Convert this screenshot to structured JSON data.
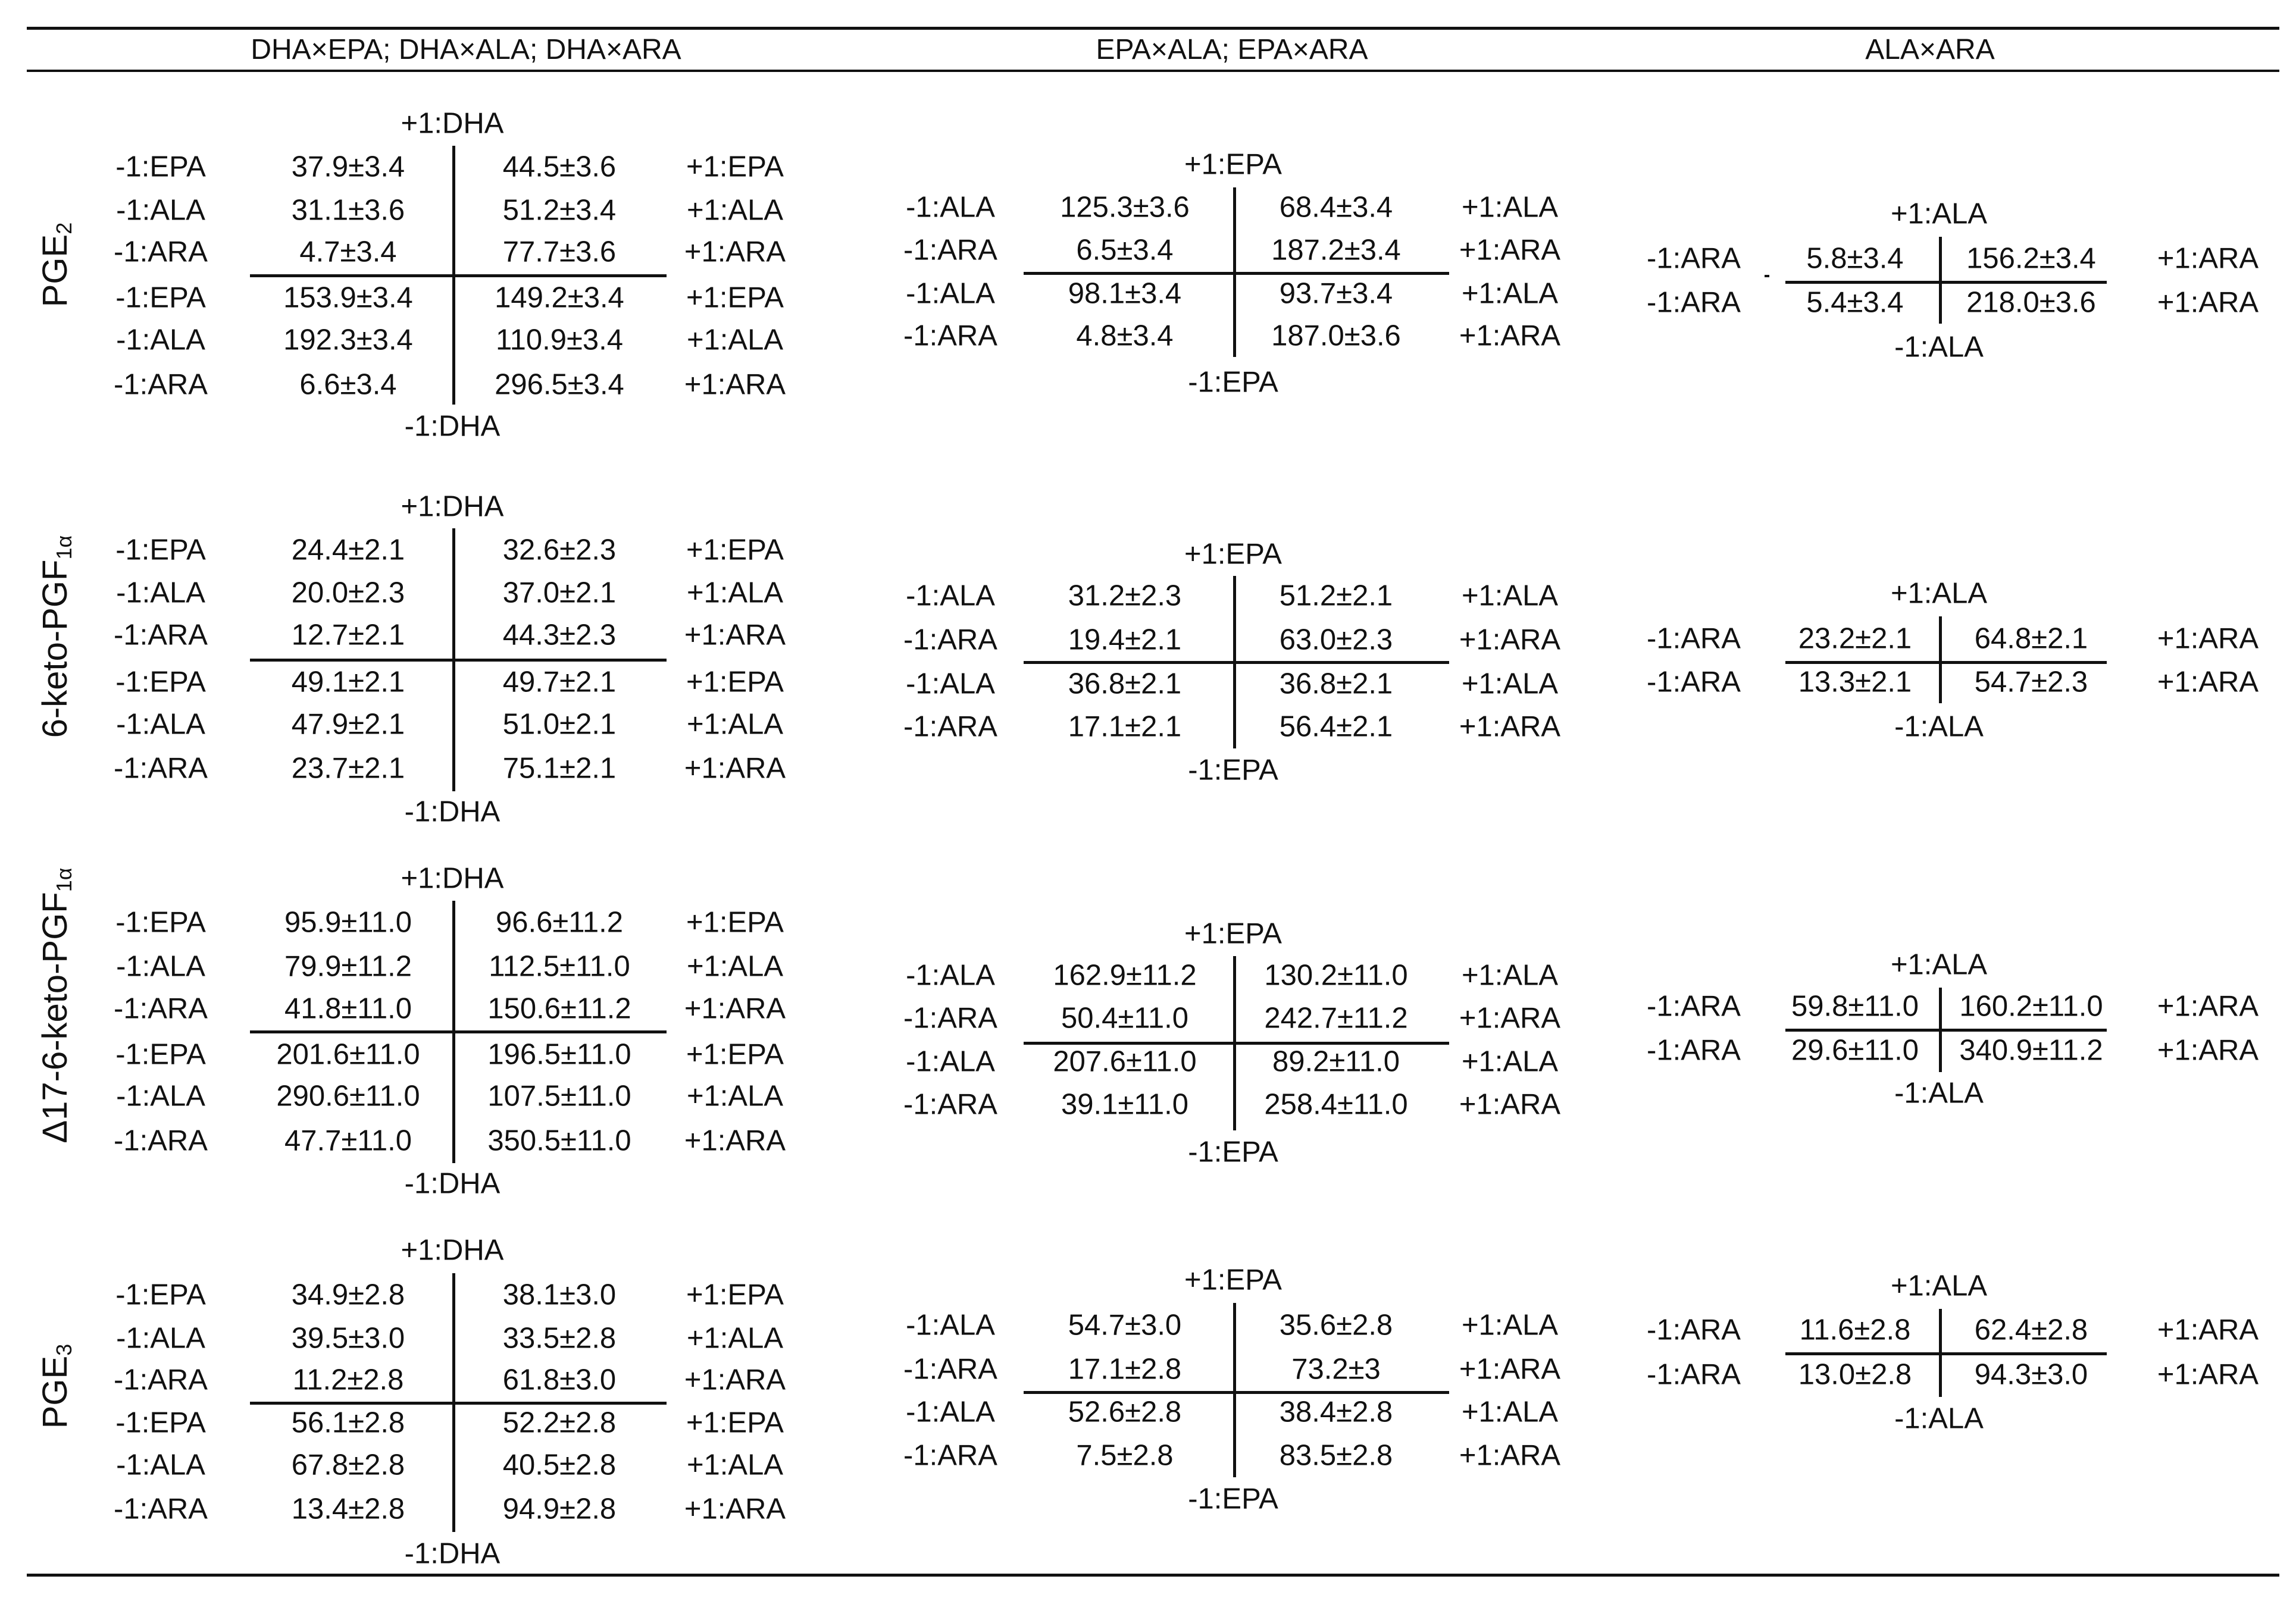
{
  "columns": [
    "DHA×EPA; DHA×ALA; DHA×ARA",
    "EPA×ALA; EPA×ARA",
    "ALA×ARA"
  ],
  "rows": [
    {
      "label": "PGE",
      "label_sub": "2",
      "g1": {
        "top": "+1:DHA",
        "bottom": "-1:DHA",
        "left": [
          "-1:EPA",
          "-1:ALA",
          "-1:ARA",
          "-1:EPA",
          "-1:ALA",
          "-1:ARA"
        ],
        "right": [
          "+1:EPA",
          "+1:ALA",
          "+1:ARA",
          "+1:EPA",
          "+1:ALA",
          "+1:ARA"
        ],
        "c1": [
          "37.9±3.4",
          "31.1±3.6",
          "4.7±3.4",
          "153.9±3.4",
          "192.3±3.4",
          "6.6±3.4"
        ],
        "c2": [
          "44.5±3.6",
          "51.2±3.4",
          "77.7±3.6",
          "149.2±3.4",
          "110.9±3.4",
          "296.5±3.4"
        ]
      },
      "g2": {
        "top": "+1:EPA",
        "bottom": "-1:EPA",
        "left": [
          "-1:ALA",
          "-1:ARA",
          "-1:ALA",
          "-1:ARA"
        ],
        "right": [
          "+1:ALA",
          "+1:ARA",
          "+1:ALA",
          "+1:ARA"
        ],
        "c1": [
          "125.3±3.6",
          "6.5±3.4",
          "98.1±3.4",
          "4.8±3.4"
        ],
        "c2": [
          "68.4±3.4",
          "187.2±3.4",
          "93.7±3.4",
          "187.0±3.6"
        ]
      },
      "g3": {
        "top": "+1:ALA",
        "bottom": "-1:ALA",
        "left": [
          "-1:ARA",
          "-1:ARA"
        ],
        "right": [
          "+1:ARA",
          "+1:ARA"
        ],
        "c1": [
          "5.8±3.4",
          "5.4±3.4"
        ],
        "c2": [
          "156.2±3.4",
          "218.0±3.6"
        ]
      }
    },
    {
      "label": "6-keto-PGF",
      "label_sub": "1α",
      "g1": {
        "top": "+1:DHA",
        "bottom": "-1:DHA",
        "left": [
          "-1:EPA",
          "-1:ALA",
          "-1:ARA",
          "-1:EPA",
          "-1:ALA",
          "-1:ARA"
        ],
        "right": [
          "+1:EPA",
          "+1:ALA",
          "+1:ARA",
          "+1:EPA",
          "+1:ALA",
          "+1:ARA"
        ],
        "c1": [
          "24.4±2.1",
          "20.0±2.3",
          "12.7±2.1",
          "49.1±2.1",
          "47.9±2.1",
          "23.7±2.1"
        ],
        "c2": [
          "32.6±2.3",
          "37.0±2.1",
          "44.3±2.3",
          "49.7±2.1",
          "51.0±2.1",
          "75.1±2.1"
        ]
      },
      "g2": {
        "top": "+1:EPA",
        "bottom": "-1:EPA",
        "left": [
          "-1:ALA",
          "-1:ARA",
          "-1:ALA",
          "-1:ARA"
        ],
        "right": [
          "+1:ALA",
          "+1:ARA",
          "+1:ALA",
          "+1:ARA"
        ],
        "c1": [
          "31.2±2.3",
          "19.4±2.1",
          "36.8±2.1",
          "17.1±2.1"
        ],
        "c2": [
          "51.2±2.1",
          "63.0±2.3",
          "36.8±2.1",
          "56.4±2.1"
        ]
      },
      "g3": {
        "top": "+1:ALA",
        "bottom": "-1:ALA",
        "left": [
          "-1:ARA",
          "-1:ARA"
        ],
        "right": [
          "+1:ARA",
          "+1:ARA"
        ],
        "c1": [
          "23.2±2.1",
          "13.3±2.1"
        ],
        "c2": [
          "64.8±2.1",
          "54.7±2.3"
        ]
      }
    },
    {
      "label": "Δ17-6-keto-PGF",
      "label_sub": "1α",
      "g1": {
        "top": "+1:DHA",
        "bottom": "-1:DHA",
        "left": [
          "-1:EPA",
          "-1:ALA",
          "-1:ARA",
          "-1:EPA",
          "-1:ALA",
          "-1:ARA"
        ],
        "right": [
          "+1:EPA",
          "+1:ALA",
          "+1:ARA",
          "+1:EPA",
          "+1:ALA",
          "+1:ARA"
        ],
        "c1": [
          "95.9±11.0",
          "79.9±11.2",
          "41.8±11.0",
          "201.6±11.0",
          "290.6±11.0",
          "47.7±11.0"
        ],
        "c2": [
          "96.6±11.2",
          "112.5±11.0",
          "150.6±11.2",
          "196.5±11.0",
          "107.5±11.0",
          "350.5±11.0"
        ]
      },
      "g2": {
        "top": "+1:EPA",
        "bottom": "-1:EPA",
        "left": [
          "-1:ALA",
          "-1:ARA",
          "-1:ALA",
          "-1:ARA"
        ],
        "right": [
          "+1:ALA",
          "+1:ARA",
          "+1:ALA",
          "+1:ARA"
        ],
        "c1": [
          "162.9±11.2",
          "50.4±11.0",
          "207.6±11.0",
          "39.1±11.0"
        ],
        "c2": [
          "130.2±11.0",
          "242.7±11.2",
          "89.2±11.0",
          "258.4±11.0"
        ]
      },
      "g3": {
        "top": "+1:ALA",
        "bottom": "-1:ALA",
        "left": [
          "-1:ARA",
          "-1:ARA"
        ],
        "right": [
          "+1:ARA",
          "+1:ARA"
        ],
        "c1": [
          "59.8±11.0",
          "29.6±11.0"
        ],
        "c2": [
          "160.2±11.0",
          "340.9±11.2"
        ]
      }
    },
    {
      "label": "PGE",
      "label_sub": "3",
      "g1": {
        "top": "+1:DHA",
        "bottom": "-1:DHA",
        "left": [
          "-1:EPA",
          "-1:ALA",
          "-1:ARA",
          "-1:EPA",
          "-1:ALA",
          "-1:ARA"
        ],
        "right": [
          "+1:EPA",
          "+1:ALA",
          "+1:ARA",
          "+1:EPA",
          "+1:ALA",
          "+1:ARA"
        ],
        "c1": [
          "34.9±2.8",
          "39.5±3.0",
          "11.2±2.8",
          "56.1±2.8",
          "67.8±2.8",
          "13.4±2.8"
        ],
        "c2": [
          "38.1±3.0",
          "33.5±2.8",
          "61.8±3.0",
          "52.2±2.8",
          "40.5±2.8",
          "94.9±2.8"
        ]
      },
      "g2": {
        "top": "+1:EPA",
        "bottom": "-1:EPA",
        "left": [
          "-1:ALA",
          "-1:ARA",
          "-1:ALA",
          "-1:ARA"
        ],
        "right": [
          "+1:ALA",
          "+1:ARA",
          "+1:ALA",
          "+1:ARA"
        ],
        "c1": [
          "54.7±3.0",
          "17.1±2.8",
          "52.6±2.8",
          "7.5±2.8"
        ],
        "c2": [
          "35.6±2.8",
          "73.2±3",
          "38.4±2.8",
          "83.5±2.8"
        ]
      },
      "g3": {
        "top": "+1:ALA",
        "bottom": "-1:ALA",
        "left": [
          "-1:ARA",
          "-1:ARA"
        ],
        "right": [
          "+1:ARA",
          "+1:ARA"
        ],
        "c1": [
          "11.6±2.8",
          "13.0±2.8"
        ],
        "c2": [
          "62.4±2.8",
          "94.3±3.0"
        ]
      }
    }
  ]
}
